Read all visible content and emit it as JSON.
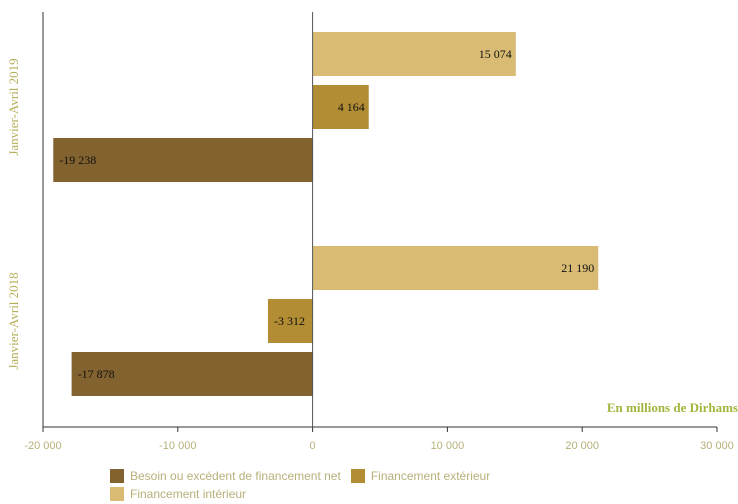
{
  "chart_data": {
    "type": "bar",
    "orientation": "horizontal",
    "categories": [
      "Janvier-Avril 2019",
      "Janvier-Avril 2018"
    ],
    "series": [
      {
        "name": "Financement intérieur",
        "color": "#d9bb74",
        "values": [
          15074,
          21190
        ],
        "labels": [
          "15 074",
          "21 190"
        ]
      },
      {
        "name": "Financement extérieur",
        "color": "#b28d34",
        "values": [
          4164,
          -3312
        ],
        "labels": [
          "4 164",
          "-3 312"
        ]
      },
      {
        "name": "Besoin ou excédent de financement net",
        "color": "#82622e",
        "values": [
          -19238,
          -17878
        ],
        "labels": [
          "-19 238",
          "-17 878"
        ]
      }
    ],
    "legend_order": [
      "Besoin ou excédent de financement net",
      "Financement extérieur",
      "Financement intérieur"
    ],
    "xlim": [
      -20000,
      30000
    ],
    "xticks": [
      -20000,
      -10000,
      0,
      10000,
      20000,
      30000
    ],
    "xtick_labels": [
      "-20 000",
      "-10 000",
      "0",
      "10 000",
      "20 000",
      "30 000"
    ],
    "unit_label": "En millions de Dirhams",
    "grid": false,
    "legend_position": "bottom"
  }
}
